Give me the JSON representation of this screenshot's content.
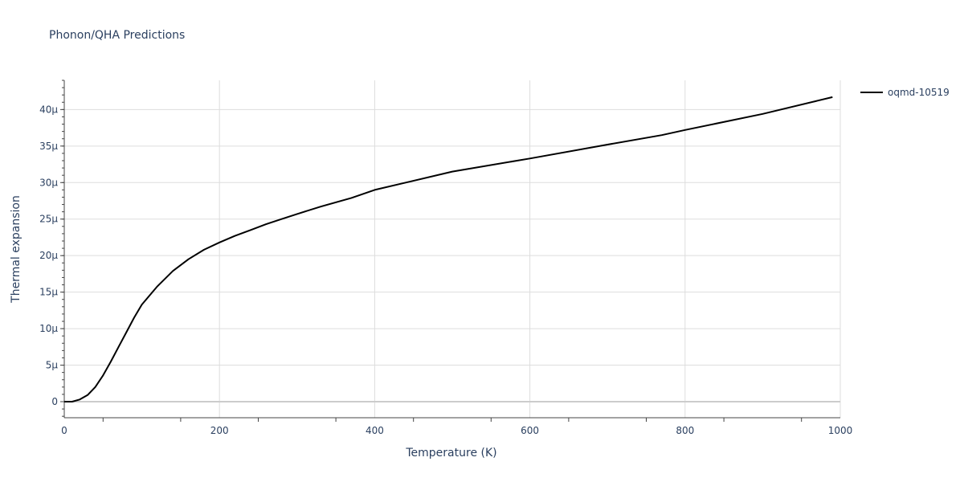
{
  "chart_data": {
    "type": "line",
    "title": "Phonon/QHA Predictions",
    "xlabel": "Temperature (K)",
    "ylabel": "Thermal expansion",
    "xlim": [
      0,
      1000
    ],
    "ylim": [
      -2.2e-06,
      4.4e-05
    ],
    "x_ticks": [
      0,
      200,
      400,
      600,
      800,
      1000
    ],
    "x_tick_labels": [
      "0",
      "200",
      "400",
      "600",
      "800",
      "1000"
    ],
    "y_ticks": [
      0,
      5e-06,
      1e-05,
      1.5e-05,
      2e-05,
      2.5e-05,
      3e-05,
      3.5e-05,
      4e-05
    ],
    "y_tick_labels": [
      "0",
      "5μ",
      "10μ",
      "15μ",
      "20μ",
      "25μ",
      "30μ",
      "35μ",
      "40μ"
    ],
    "grid": true,
    "legend_position": "top-right",
    "series": [
      {
        "name": "oqmd-10519",
        "color": "#000000",
        "x": [
          0,
          10,
          20,
          30,
          40,
          50,
          60,
          70,
          80,
          90,
          100,
          120,
          140,
          160,
          180,
          200,
          220,
          240,
          260,
          280,
          300,
          330,
          370,
          400,
          440,
          500,
          600,
          700,
          770,
          800,
          900,
          990
        ],
        "y": [
          0,
          0,
          3e-07,
          9e-07,
          2e-06,
          3.6e-06,
          5.5e-06,
          7.5e-06,
          9.5e-06,
          1.15e-05,
          1.33e-05,
          1.58e-05,
          1.79e-05,
          1.95e-05,
          2.08e-05,
          2.18e-05,
          2.27e-05,
          2.35e-05,
          2.43e-05,
          2.5e-05,
          2.57e-05,
          2.67e-05,
          2.79e-05,
          2.9e-05,
          3e-05,
          3.15e-05,
          3.33e-05,
          3.52e-05,
          3.65e-05,
          3.72e-05,
          3.94e-05,
          4.17e-05
        ]
      }
    ]
  }
}
